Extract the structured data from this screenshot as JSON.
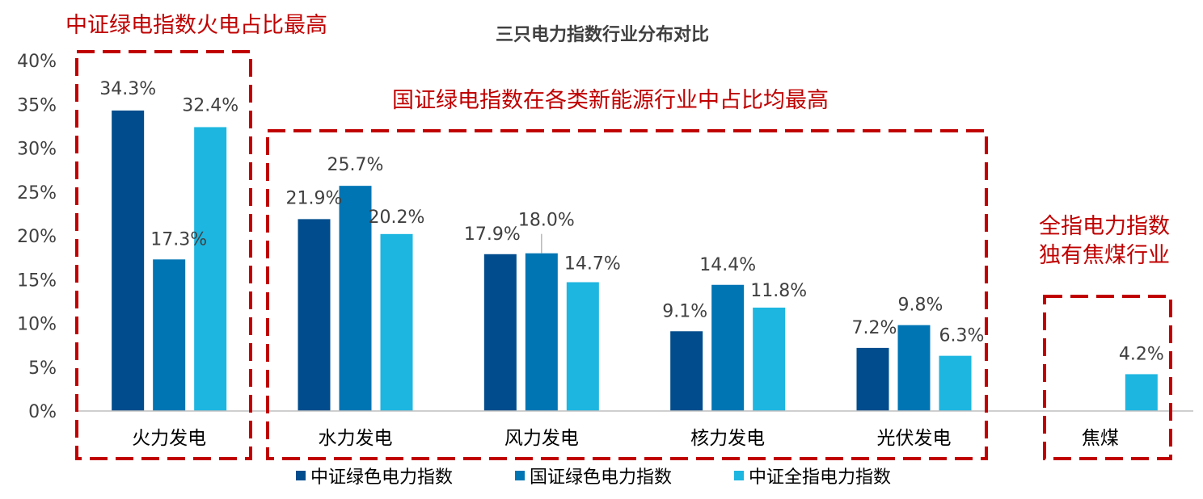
{
  "chart_data": {
    "type": "bar",
    "title": "三只电力指数行业分布对比",
    "xlabel": "",
    "ylabel": "",
    "ylim": [
      0,
      40
    ],
    "yticks": [
      0,
      5,
      10,
      15,
      20,
      25,
      30,
      35,
      40
    ],
    "ytick_format": "percent",
    "grid": false,
    "legend_position": "bottom",
    "categories": [
      "火力发电",
      "水力发电",
      "风力发电",
      "核力发电",
      "光伏发电",
      "焦煤"
    ],
    "series": [
      {
        "name": "中证绿色电力指数",
        "color": "#004C8C",
        "values": [
          34.3,
          21.9,
          17.9,
          9.1,
          7.2,
          null
        ],
        "labels": [
          "34.3%",
          "21.9%",
          "17.9%",
          "9.1%",
          "7.2%",
          ""
        ]
      },
      {
        "name": "国证绿色电力指数",
        "color": "#0075B4",
        "values": [
          17.3,
          25.7,
          18.0,
          14.4,
          9.8,
          null
        ],
        "labels": [
          "17.3%",
          "25.7%",
          "18.0%",
          "14.4%",
          "9.8%",
          ""
        ]
      },
      {
        "name": "中证全指电力指数",
        "color": "#1DB6E0",
        "values": [
          32.4,
          20.2,
          14.7,
          11.8,
          6.3,
          4.2
        ],
        "labels": [
          "32.4%",
          "20.2%",
          "14.7%",
          "11.8%",
          "6.3%",
          "4.2%"
        ]
      }
    ],
    "annotations": [
      {
        "text": "中证绿电指数火电占比最高",
        "color": "#C00000"
      },
      {
        "text": "国证绿电指数在各类新能源行业中占比均最高",
        "color": "#C00000"
      },
      {
        "text": "全指电力指数",
        "color": "#C00000"
      },
      {
        "text": "独有焦煤行业",
        "color": "#C00000"
      }
    ]
  }
}
